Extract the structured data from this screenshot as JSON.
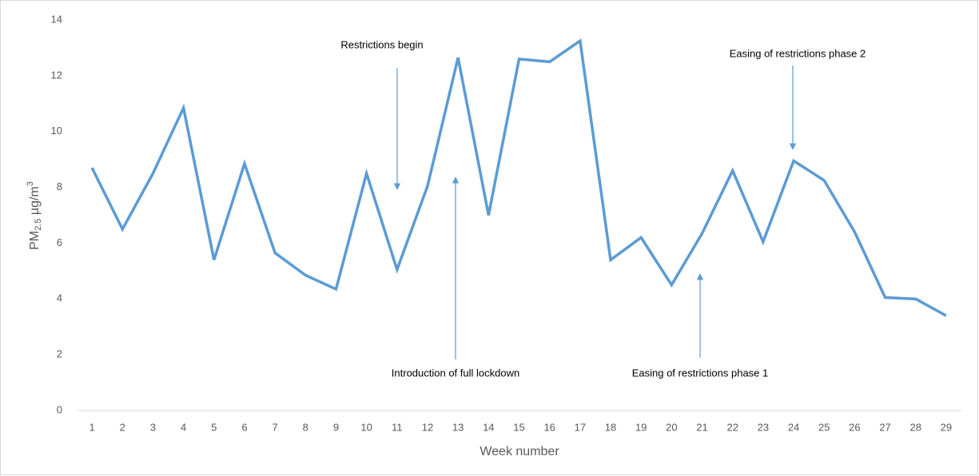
{
  "chart_data": {
    "type": "line",
    "x_label": "Week number",
    "y_label": {
      "base": "PM",
      "sub": "2.5",
      "unit": " µg/m",
      "sup": "3"
    },
    "categories": [
      1,
      2,
      3,
      4,
      5,
      6,
      7,
      8,
      9,
      10,
      11,
      12,
      13,
      14,
      15,
      16,
      17,
      18,
      19,
      20,
      21,
      22,
      23,
      24,
      25,
      26,
      27,
      28,
      29
    ],
    "series": [
      {
        "color": "#5b9bd5",
        "values": [
          8.7,
          6.5,
          8.5,
          10.85,
          5.4,
          8.85,
          5.65,
          4.85,
          4.35,
          8.5,
          5.05,
          8.05,
          12.65,
          7.0,
          12.6,
          12.5,
          13.25,
          5.4,
          6.2,
          4.5,
          6.35,
          8.6,
          6.05,
          8.95,
          8.25,
          6.4,
          4.05,
          4.0,
          3.4
        ]
      }
    ],
    "ylim": [
      0,
      14
    ],
    "yticks": [
      0,
      2,
      4,
      6,
      8,
      10,
      12,
      14
    ],
    "grid": false,
    "annotations": [
      "Restrictions begin",
      "Introduction of full lockdown",
      "Easing of restrictions phase 1",
      "Easing of restrictions phase 2"
    ]
  }
}
